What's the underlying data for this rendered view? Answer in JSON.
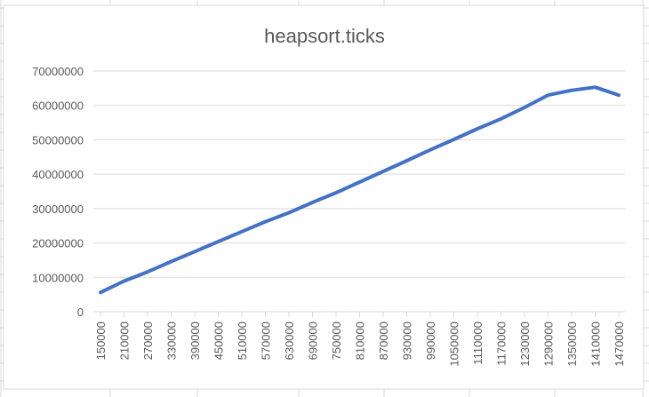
{
  "chart_data": {
    "type": "line",
    "title": "heapsort.ticks",
    "xlabel": "",
    "ylabel": "",
    "ylim": [
      0,
      70000000
    ],
    "yticks": [
      0,
      10000000,
      20000000,
      30000000,
      40000000,
      50000000,
      60000000,
      70000000
    ],
    "ytick_labels": [
      "0",
      "10000000",
      "20000000",
      "30000000",
      "40000000",
      "50000000",
      "60000000",
      "70000000"
    ],
    "xtick_labels": [
      "150000",
      "210000",
      "270000",
      "330000",
      "390000",
      "450000",
      "510000",
      "570000",
      "630000",
      "690000",
      "750000",
      "810000",
      "870000",
      "930000",
      "990000",
      "1050000",
      "1110000",
      "1170000",
      "1230000",
      "1290000",
      "1350000",
      "1410000",
      "1470000"
    ],
    "grid": true,
    "legend": "none",
    "color": "#4472c4",
    "series": [
      {
        "x": [
          150000,
          210000,
          270000,
          330000,
          390000,
          450000,
          510000,
          570000,
          630000,
          690000,
          750000,
          810000,
          870000,
          930000,
          990000,
          1050000,
          1110000,
          1170000,
          1230000,
          1290000,
          1350000,
          1410000,
          1470000
        ],
        "values": [
          5600000,
          8900000,
          11600000,
          14600000,
          17500000,
          20400000,
          23300000,
          26200000,
          28800000,
          31800000,
          34600000,
          37700000,
          40800000,
          43900000,
          47100000,
          50100000,
          53200000,
          56100000,
          59400000,
          63000000,
          64400000,
          65300000,
          63000000
        ]
      }
    ]
  }
}
